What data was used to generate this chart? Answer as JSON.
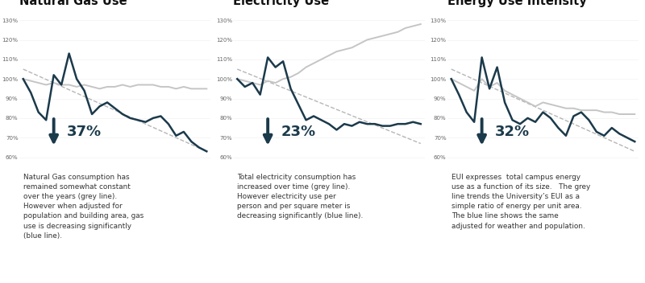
{
  "titles": [
    "Natural Gas Use",
    "Electricity Use",
    "Energy Use Intensity"
  ],
  "percentages": [
    "37%",
    "23%",
    "32%"
  ],
  "descriptions": [
    "Natural Gas consumption has\nremained somewhat constant\nover the years (grey line).\nHowever when adjusted for\npopulation and building area, gas\nuse is decreasing significantly\n(blue line).",
    "Total electricity consumption has\nincreased over time (grey line).\nHowever electricity use per\nperson and per square meter is\ndecreasing significantly (blue line).",
    "EUI expresses  total campus energy\nuse as a function of its size.   The grey\nline trends the University’s EUI as a\nsimple ratio of energy per unit area.\nThe blue line shows the same\nadjusted for weather and population."
  ],
  "yticks": [
    60,
    70,
    80,
    90,
    100,
    110,
    120,
    130
  ],
  "ylim": [
    57,
    136
  ],
  "blue_color": "#1b3a4b",
  "grey_color": "#c5c5c5",
  "bg_color": "#ffffff",
  "ng_blue": [
    100,
    93,
    83,
    79,
    102,
    97,
    113,
    100,
    94,
    82,
    86,
    88,
    85,
    82,
    80,
    79,
    78,
    80,
    81,
    77,
    71,
    73,
    68,
    65,
    63
  ],
  "ng_grey": [
    100,
    99,
    98,
    97,
    98,
    97,
    97,
    96,
    97,
    96,
    95,
    96,
    96,
    97,
    96,
    97,
    97,
    97,
    96,
    96,
    95,
    96,
    95,
    95,
    95
  ],
  "elec_blue": [
    100,
    96,
    98,
    92,
    111,
    106,
    109,
    95,
    87,
    79,
    81,
    79,
    77,
    74,
    77,
    76,
    78,
    77,
    77,
    76,
    76,
    77,
    77,
    78,
    77
  ],
  "elec_grey": [
    100,
    99,
    98,
    97,
    99,
    98,
    100,
    101,
    103,
    106,
    108,
    110,
    112,
    114,
    115,
    116,
    118,
    120,
    121,
    122,
    123,
    124,
    126,
    127,
    128
  ],
  "eui_blue": [
    100,
    92,
    83,
    78,
    111,
    95,
    106,
    88,
    79,
    77,
    80,
    78,
    83,
    80,
    75,
    71,
    81,
    83,
    79,
    73,
    71,
    75,
    72,
    70,
    68
  ],
  "eui_grey": [
    100,
    98,
    96,
    94,
    100,
    96,
    98,
    94,
    92,
    90,
    88,
    86,
    88,
    87,
    86,
    85,
    85,
    84,
    84,
    84,
    83,
    83,
    82,
    82,
    82
  ],
  "trend_starts": [
    105,
    105,
    105
  ],
  "trend_ends": [
    63,
    67,
    63
  ]
}
